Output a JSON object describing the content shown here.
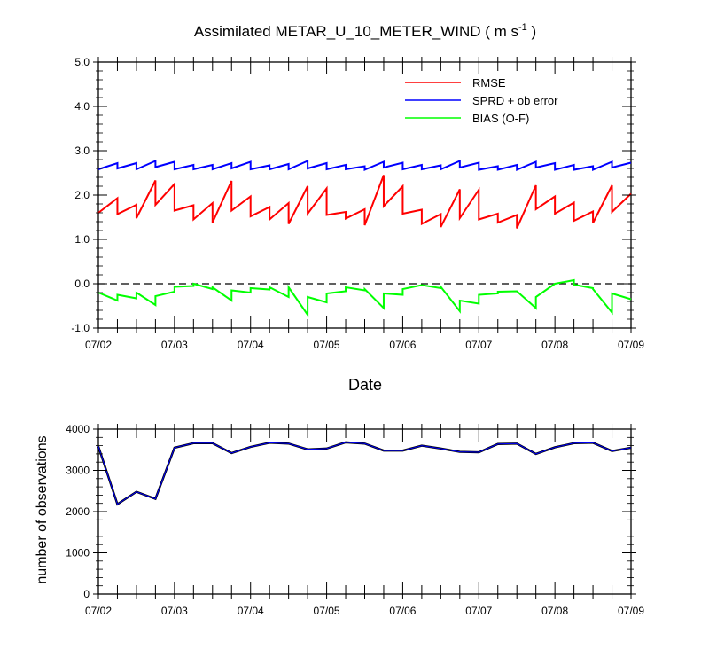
{
  "chart_data": [
    {
      "type": "line",
      "title_main": "Assimilated METAR_U_10_METER_WIND ( m s",
      "title_sup": "-1",
      "title_end": " )",
      "xlabel": "Date",
      "ylabel": "",
      "ylim": [
        -1.0,
        5.0
      ],
      "yticks": [
        "-1.0",
        "0.0",
        "1.0",
        "2.0",
        "3.0",
        "4.0",
        "5.0"
      ],
      "xlim": [
        0,
        7
      ],
      "xticks": [
        "07/02",
        "07/03",
        "07/04",
        "07/05",
        "07/06",
        "07/07",
        "07/08",
        "07/09"
      ],
      "reference_line": 0.0,
      "legend_position": "top-right",
      "series": [
        {
          "name": "RMSE",
          "color": "#ff0000",
          "points": [
            [
              0,
              1.6
            ],
            [
              0.25,
              1.93
            ],
            [
              0.25,
              1.57
            ],
            [
              0.5,
              1.78
            ],
            [
              0.5,
              1.48
            ],
            [
              0.75,
              2.33
            ],
            [
              0.75,
              1.78
            ],
            [
              1.0,
              2.25
            ],
            [
              1.0,
              1.65
            ],
            [
              1.25,
              1.77
            ],
            [
              1.25,
              1.45
            ],
            [
              1.5,
              1.82
            ],
            [
              1.5,
              1.38
            ],
            [
              1.75,
              2.32
            ],
            [
              1.75,
              1.65
            ],
            [
              2.0,
              1.97
            ],
            [
              2.0,
              1.52
            ],
            [
              2.25,
              1.73
            ],
            [
              2.25,
              1.45
            ],
            [
              2.5,
              1.82
            ],
            [
              2.5,
              1.35
            ],
            [
              2.75,
              2.2
            ],
            [
              2.75,
              1.58
            ],
            [
              3.0,
              2.15
            ],
            [
              3.0,
              1.55
            ],
            [
              3.25,
              1.62
            ],
            [
              3.25,
              1.47
            ],
            [
              3.5,
              1.68
            ],
            [
              3.5,
              1.32
            ],
            [
              3.75,
              2.45
            ],
            [
              3.75,
              1.75
            ],
            [
              4.0,
              2.2
            ],
            [
              4.0,
              1.58
            ],
            [
              4.25,
              1.67
            ],
            [
              4.25,
              1.35
            ],
            [
              4.5,
              1.57
            ],
            [
              4.5,
              1.28
            ],
            [
              4.75,
              2.13
            ],
            [
              4.75,
              1.48
            ],
            [
              5.0,
              2.12
            ],
            [
              5.0,
              1.45
            ],
            [
              5.25,
              1.58
            ],
            [
              5.25,
              1.38
            ],
            [
              5.5,
              1.55
            ],
            [
              5.5,
              1.25
            ],
            [
              5.75,
              2.22
            ],
            [
              5.75,
              1.68
            ],
            [
              6.0,
              1.97
            ],
            [
              6.0,
              1.58
            ],
            [
              6.25,
              1.83
            ],
            [
              6.25,
              1.42
            ],
            [
              6.5,
              1.63
            ],
            [
              6.5,
              1.37
            ],
            [
              6.75,
              2.22
            ],
            [
              6.75,
              1.62
            ],
            [
              7.0,
              2.03
            ]
          ]
        },
        {
          "name": "SPRD + ob error",
          "color": "#0000ff",
          "points": [
            [
              0,
              2.58
            ],
            [
              0.25,
              2.72
            ],
            [
              0.25,
              2.6
            ],
            [
              0.5,
              2.72
            ],
            [
              0.5,
              2.58
            ],
            [
              0.75,
              2.77
            ],
            [
              0.75,
              2.63
            ],
            [
              1.0,
              2.75
            ],
            [
              1.0,
              2.58
            ],
            [
              1.25,
              2.68
            ],
            [
              1.25,
              2.58
            ],
            [
              1.5,
              2.68
            ],
            [
              1.5,
              2.58
            ],
            [
              1.75,
              2.72
            ],
            [
              1.75,
              2.6
            ],
            [
              2.0,
              2.75
            ],
            [
              2.0,
              2.58
            ],
            [
              2.25,
              2.67
            ],
            [
              2.25,
              2.58
            ],
            [
              2.5,
              2.7
            ],
            [
              2.5,
              2.58
            ],
            [
              2.75,
              2.77
            ],
            [
              2.75,
              2.6
            ],
            [
              3.0,
              2.72
            ],
            [
              3.0,
              2.58
            ],
            [
              3.25,
              2.68
            ],
            [
              3.25,
              2.58
            ],
            [
              3.5,
              2.65
            ],
            [
              3.5,
              2.57
            ],
            [
              3.75,
              2.75
            ],
            [
              3.75,
              2.62
            ],
            [
              4.0,
              2.73
            ],
            [
              4.0,
              2.58
            ],
            [
              4.25,
              2.68
            ],
            [
              4.25,
              2.58
            ],
            [
              4.5,
              2.67
            ],
            [
              4.5,
              2.58
            ],
            [
              4.75,
              2.77
            ],
            [
              4.75,
              2.62
            ],
            [
              5.0,
              2.73
            ],
            [
              5.0,
              2.57
            ],
            [
              5.25,
              2.65
            ],
            [
              5.25,
              2.57
            ],
            [
              5.5,
              2.68
            ],
            [
              5.5,
              2.57
            ],
            [
              5.75,
              2.75
            ],
            [
              5.75,
              2.62
            ],
            [
              6.0,
              2.72
            ],
            [
              6.0,
              2.57
            ],
            [
              6.25,
              2.68
            ],
            [
              6.25,
              2.57
            ],
            [
              6.5,
              2.65
            ],
            [
              6.5,
              2.57
            ],
            [
              6.75,
              2.75
            ],
            [
              6.75,
              2.62
            ],
            [
              7.0,
              2.73
            ]
          ]
        },
        {
          "name": "BIAS (O-F)",
          "color": "#00ff00",
          "points": [
            [
              0,
              -0.2
            ],
            [
              0.25,
              -0.38
            ],
            [
              0.25,
              -0.25
            ],
            [
              0.5,
              -0.33
            ],
            [
              0.5,
              -0.2
            ],
            [
              0.75,
              -0.48
            ],
            [
              0.75,
              -0.28
            ],
            [
              1.0,
              -0.18
            ],
            [
              1.0,
              -0.07
            ],
            [
              1.25,
              -0.05
            ],
            [
              1.25,
              0.0
            ],
            [
              1.5,
              -0.12
            ],
            [
              1.5,
              -0.08
            ],
            [
              1.75,
              -0.38
            ],
            [
              1.75,
              -0.15
            ],
            [
              2.0,
              -0.2
            ],
            [
              2.0,
              -0.1
            ],
            [
              2.25,
              -0.13
            ],
            [
              2.25,
              -0.08
            ],
            [
              2.5,
              -0.3
            ],
            [
              2.5,
              -0.08
            ],
            [
              2.75,
              -0.7
            ],
            [
              2.75,
              -0.3
            ],
            [
              3.0,
              -0.42
            ],
            [
              3.0,
              -0.22
            ],
            [
              3.25,
              -0.17
            ],
            [
              3.25,
              -0.08
            ],
            [
              3.5,
              -0.15
            ],
            [
              3.5,
              -0.12
            ],
            [
              3.75,
              -0.55
            ],
            [
              3.75,
              -0.22
            ],
            [
              4.0,
              -0.25
            ],
            [
              4.0,
              -0.12
            ],
            [
              4.25,
              -0.03
            ],
            [
              4.25,
              -0.03
            ],
            [
              4.5,
              -0.1
            ],
            [
              4.5,
              -0.07
            ],
            [
              4.75,
              -0.62
            ],
            [
              4.75,
              -0.38
            ],
            [
              5.0,
              -0.45
            ],
            [
              5.0,
              -0.25
            ],
            [
              5.25,
              -0.22
            ],
            [
              5.25,
              -0.18
            ],
            [
              5.5,
              -0.17
            ],
            [
              5.5,
              -0.17
            ],
            [
              5.75,
              -0.55
            ],
            [
              5.75,
              -0.3
            ],
            [
              6.0,
              0.0
            ],
            [
              6.0,
              0.0
            ],
            [
              6.25,
              0.08
            ],
            [
              6.25,
              -0.02
            ],
            [
              6.5,
              -0.1
            ],
            [
              6.5,
              -0.12
            ],
            [
              6.75,
              -0.65
            ],
            [
              6.75,
              -0.22
            ],
            [
              7.0,
              -0.35
            ]
          ]
        }
      ]
    },
    {
      "type": "line",
      "title": "",
      "xlabel": "",
      "ylabel": "number of observations",
      "ylim": [
        0,
        4000
      ],
      "yticks": [
        "0",
        "1000",
        "2000",
        "3000",
        "4000"
      ],
      "xlim": [
        0,
        7
      ],
      "xticks": [
        "07/02",
        "07/03",
        "07/04",
        "07/05",
        "07/06",
        "07/07",
        "07/08",
        "07/09"
      ],
      "series": [
        {
          "name": "",
          "color": "#000000",
          "overlay_color": "#0000ff",
          "x": [
            0,
            0.25,
            0.5,
            0.75,
            1.0,
            1.25,
            1.5,
            1.75,
            2.0,
            2.25,
            2.5,
            2.75,
            3.0,
            3.25,
            3.5,
            3.75,
            4.0,
            4.25,
            4.5,
            4.75,
            5.0,
            5.25,
            5.5,
            5.75,
            6.0,
            6.25,
            6.5,
            6.75,
            7.0
          ],
          "values": [
            3580,
            2180,
            2480,
            2310,
            3550,
            3660,
            3660,
            3420,
            3570,
            3670,
            3650,
            3510,
            3530,
            3680,
            3650,
            3480,
            3480,
            3600,
            3530,
            3450,
            3440,
            3640,
            3650,
            3400,
            3560,
            3660,
            3670,
            3470,
            3550
          ]
        }
      ]
    }
  ]
}
